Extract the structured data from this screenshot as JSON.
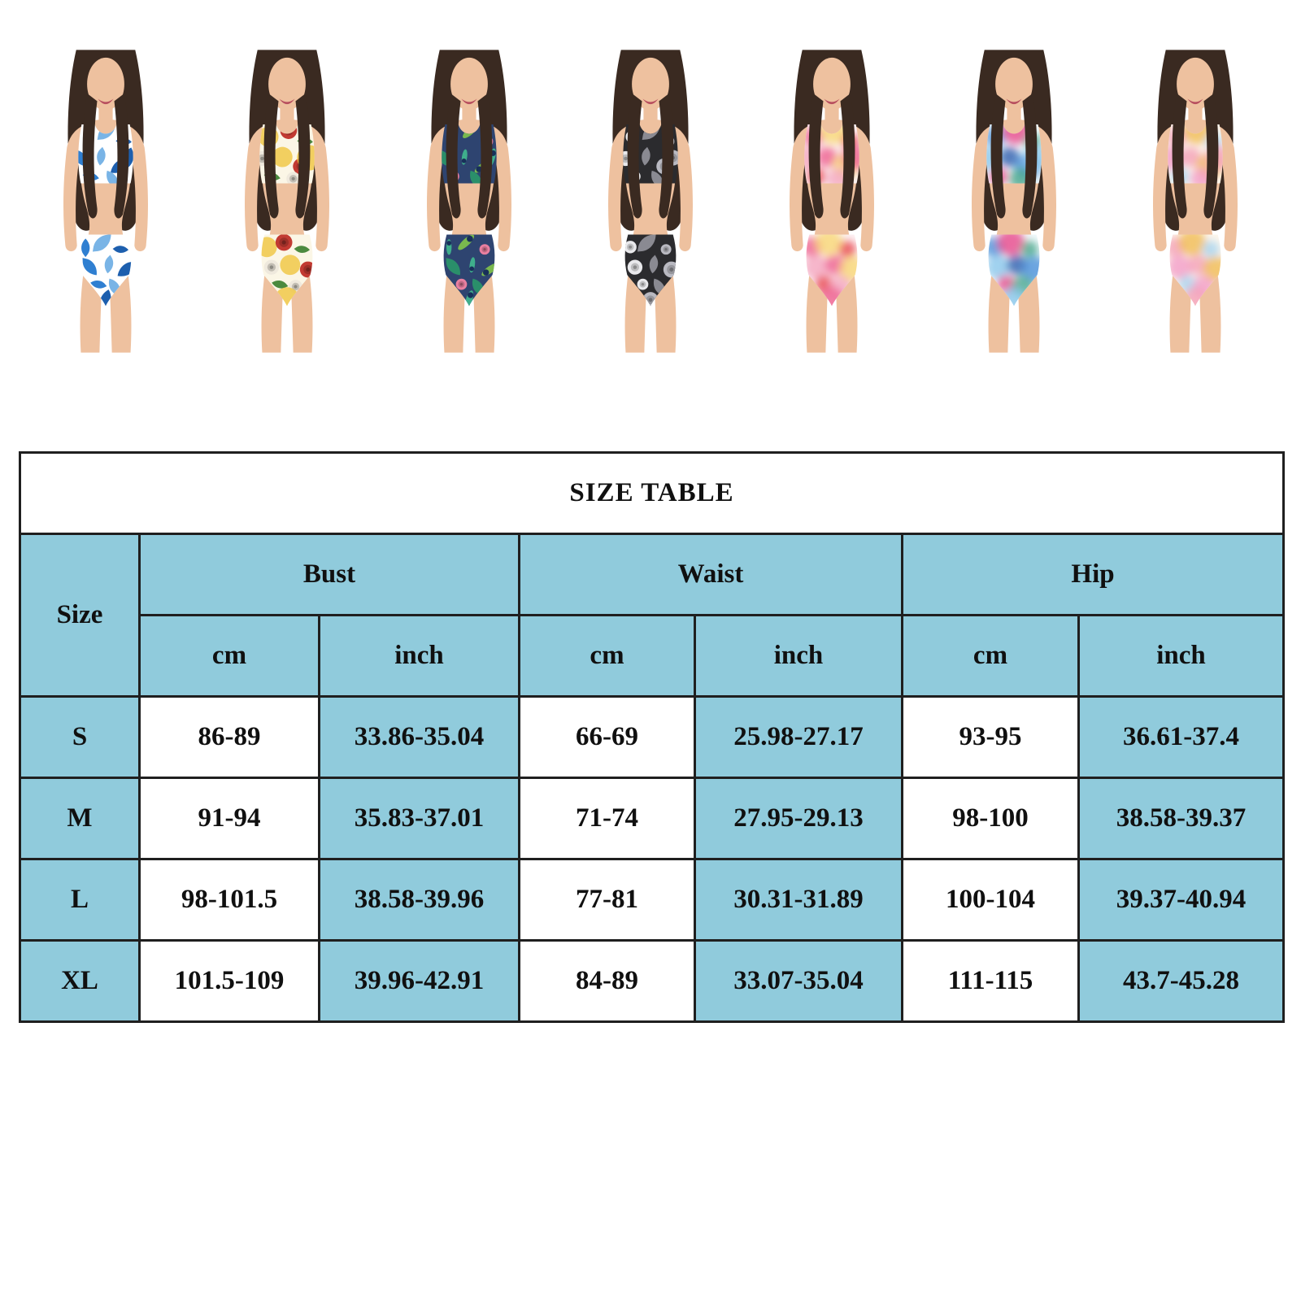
{
  "gallery": {
    "skin_color": "#eec19f",
    "hair_color": "#3a2a21",
    "products": [
      {
        "name": "blue-tropical-leaf-bikini",
        "description": "white two-piece bikini with blue tropical leaf print",
        "style": "print",
        "base": "#ffffff",
        "motifs": [
          {
            "shape": "leaf",
            "color": "#2f7fd1"
          },
          {
            "shape": "leaf",
            "color": "#79b4e6"
          },
          {
            "shape": "leaf",
            "color": "#1d5fae"
          }
        ]
      },
      {
        "name": "yellow-floral-bikini",
        "description": "yellow and white bikini with red rose floral print",
        "style": "print",
        "base": "#fbf6e6",
        "motifs": [
          {
            "shape": "blob",
            "color": "#f0c63e"
          },
          {
            "shape": "rose",
            "color": "#c23a32"
          },
          {
            "shape": "leaf",
            "color": "#4c8a3f"
          },
          {
            "shape": "rose",
            "color": "#efe9dd"
          }
        ]
      },
      {
        "name": "peacock-tropical-bikini",
        "description": "navy bikini with green peacock and tropical flower print",
        "style": "print",
        "base": "#2e4470",
        "motifs": [
          {
            "shape": "feather",
            "color": "#3fae8c"
          },
          {
            "shape": "feather",
            "color": "#79b84e"
          },
          {
            "shape": "rose",
            "color": "#e87fa0"
          },
          {
            "shape": "leaf",
            "color": "#2a8f6a"
          }
        ]
      },
      {
        "name": "black-white-floral-bikini",
        "description": "black bikini with white hibiscus floral print",
        "style": "print",
        "base": "#2b2b2e",
        "motifs": [
          {
            "shape": "rose",
            "color": "#e9e9ec"
          },
          {
            "shape": "leaf",
            "color": "#8a8a92"
          },
          {
            "shape": "rose",
            "color": "#b9b9c1"
          }
        ]
      },
      {
        "name": "pink-yellow-tiedye-bikini",
        "description": "white bikini with pink and yellow tie-dye print",
        "style": "tiedye",
        "base": "#fdf3f5",
        "motifs": [
          {
            "shape": "blob",
            "color": "#ee5f8f"
          },
          {
            "shape": "blob",
            "color": "#f7d774"
          },
          {
            "shape": "blob",
            "color": "#e8484f"
          },
          {
            "shape": "blob",
            "color": "#f4a8c0"
          }
        ]
      },
      {
        "name": "blue-pink-tiedye-bikini",
        "description": "white bikini with blue pink and green tie-dye print",
        "style": "tiedye",
        "base": "#f3f9fc",
        "motifs": [
          {
            "shape": "blob",
            "color": "#4a90d9"
          },
          {
            "shape": "blob",
            "color": "#e8488b"
          },
          {
            "shape": "blob",
            "color": "#49a88c"
          },
          {
            "shape": "blob",
            "color": "#8cc8ec"
          },
          {
            "shape": "blob",
            "color": "#2f5fae"
          }
        ]
      },
      {
        "name": "pastel-tiedye-bikini",
        "description": "white bikini with pastel pink yellow and blue tie-dye print",
        "style": "tiedye",
        "base": "#fdf6ec",
        "motifs": [
          {
            "shape": "blob",
            "color": "#f4a0b8"
          },
          {
            "shape": "blob",
            "color": "#f0bc54"
          },
          {
            "shape": "blob",
            "color": "#a8d4f0"
          },
          {
            "shape": "blob",
            "color": "#f29cc8"
          }
        ]
      }
    ]
  },
  "size_table": {
    "title": "SIZE TABLE",
    "corner_label": "Size",
    "groups": [
      {
        "label": "Bust"
      },
      {
        "label": "Waist"
      },
      {
        "label": "Hip"
      }
    ],
    "unit_labels": [
      "cm",
      "inch",
      "cm",
      "inch",
      "cm",
      "inch"
    ],
    "rows": [
      {
        "size": "S",
        "values": [
          "86-89",
          "33.86-35.04",
          "66-69",
          "25.98-27.17",
          "93-95",
          "36.61-37.4"
        ]
      },
      {
        "size": "M",
        "values": [
          "91-94",
          "35.83-37.01",
          "71-74",
          "27.95-29.13",
          "98-100",
          "38.58-39.37"
        ]
      },
      {
        "size": "L",
        "values": [
          "98-101.5",
          "38.58-39.96",
          "77-81",
          "30.31-31.89",
          "100-104",
          "39.37-40.94"
        ]
      },
      {
        "size": "XL",
        "values": [
          "101.5-109",
          "39.96-42.91",
          "84-89",
          "33.07-35.04",
          "111-115",
          "43.7-45.28"
        ]
      }
    ],
    "colors": {
      "header_bg": "#90cbdc",
      "alt_cell_bg": "#90cbdc",
      "cell_bg": "#ffffff",
      "border": "#1f1f1f",
      "text": "#101010",
      "title_bg": "#ffffff"
    }
  }
}
